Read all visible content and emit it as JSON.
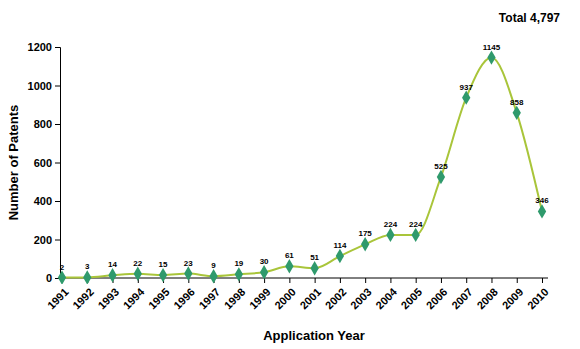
{
  "chart_data": {
    "type": "line",
    "annotation": "Total 4,797",
    "x_label": "Application Year",
    "y_label": "Number of Patents",
    "categories": [
      "1991",
      "1992",
      "1993",
      "1994",
      "1995",
      "1996",
      "1997",
      "1998",
      "1999",
      "2000",
      "2001",
      "2002",
      "2003",
      "2004",
      "2005",
      "2006",
      "2007",
      "2008",
      "2009",
      "2010"
    ],
    "series": [
      {
        "name": "Number of Patents",
        "color": "#a9c53a",
        "marker": "diamond",
        "values": [
          2,
          3,
          14,
          22,
          15,
          23,
          9,
          19,
          30,
          61,
          51,
          114,
          175,
          224,
          224,
          525,
          937,
          1145,
          858,
          346
        ]
      }
    ],
    "ylim": [
      0,
      1200
    ],
    "yticks": [
      0,
      200,
      400,
      600,
      800,
      1000,
      1200
    ],
    "grid": false,
    "data_labels": true
  }
}
